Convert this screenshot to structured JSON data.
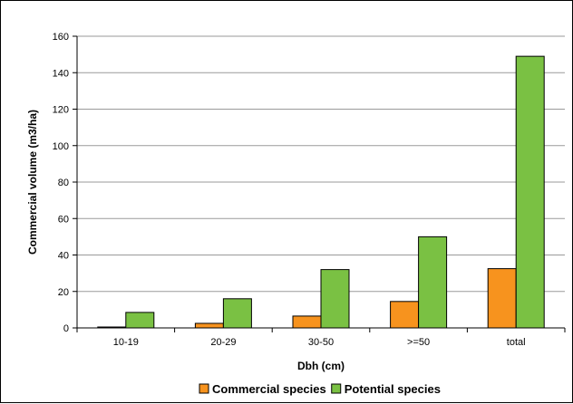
{
  "chart_data": {
    "type": "bar",
    "title": "",
    "xlabel": "Dbh (cm)",
    "ylabel": "Commercial volume (m3/ha)",
    "categories": [
      "10-19",
      "20-29",
      "30-50",
      ">=50",
      "total"
    ],
    "series": [
      {
        "name": "Commercial species",
        "color": "#f7931e",
        "values": [
          0.5,
          2.5,
          6.5,
          14.5,
          32.5
        ]
      },
      {
        "name": "Potential species",
        "color": "#7ac143",
        "values": [
          8.5,
          16,
          32,
          50,
          149
        ]
      }
    ],
    "ylim": [
      0,
      160
    ],
    "yticks": [
      0,
      20,
      40,
      60,
      80,
      100,
      120,
      140,
      160
    ],
    "grid": true,
    "legend_position": "bottom"
  }
}
